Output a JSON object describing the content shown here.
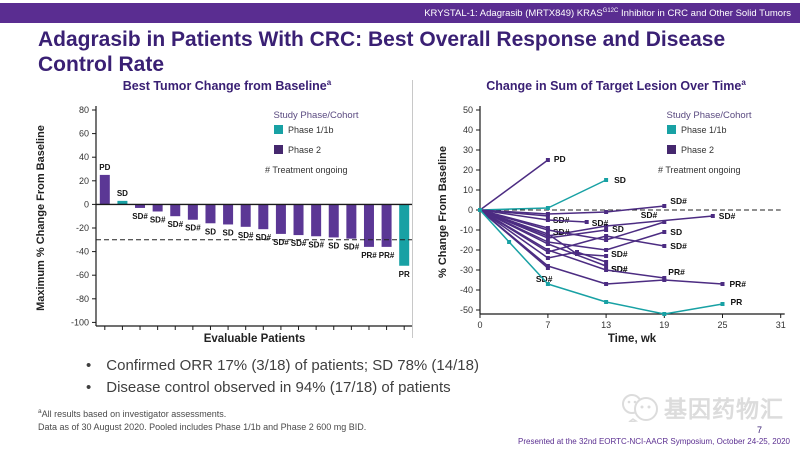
{
  "header": {
    "banner_pre": "KRYSTAL-1: Adagrasib (MRTX849) KRAS",
    "banner_sup": "G12C",
    "banner_post": " Inhibitor in CRC and Other Solid Tumors"
  },
  "title": "Adagrasib in Patients With CRC: Best Overall Response and Disease Control Rate",
  "bullets": [
    "Confirmed ORR 17% (3/18) of patients; SD 78% (14/18)",
    "Disease control observed in 94% (17/18) of patients"
  ],
  "footnotes": {
    "sup": "a",
    "line1": "All results based on investigator assessments.",
    "line2": "Data as of 30 August 2020. Pooled includes Phase 1/1b and Phase 2 600 mg BID."
  },
  "watermark": {
    "text": "基因药物汇"
  },
  "presented": "Presented at the 32nd EORTC-NCI-AACR Symposium, October 24-25, 2020",
  "page_number": "7",
  "colors": {
    "teal": "#18A1A4",
    "purple": "#5B3795",
    "purple_line": "#4C2C82",
    "purple_legend": "#45286E",
    "header": "#5A2D91",
    "title_text": "#3A2074",
    "axis": "#1A1A1A",
    "dashed": "#222222",
    "watermark": "#DCDCDC"
  },
  "chart_data": [
    {
      "type": "bar",
      "title": "Best Tumor Change from Baseline",
      "title_sup": "a",
      "xlabel": "Evaluable Patients",
      "ylabel": "Maximum % Change From Baseline",
      "ylim": [
        -100,
        80
      ],
      "yticks": [
        80,
        60,
        40,
        20,
        0,
        -20,
        -40,
        -60,
        -80,
        -100
      ],
      "reference_line": -30,
      "legend": {
        "title": "Study Phase/Cohort",
        "items": [
          {
            "label": "Phase 1/1b",
            "color_key": "teal"
          },
          {
            "label": "Phase 2",
            "color_key": "purple_legend"
          }
        ],
        "note": "# Treatment ongoing"
      },
      "bars": [
        {
          "label": "PD",
          "value": 25,
          "phase": "2"
        },
        {
          "label": "SD",
          "value": 3,
          "phase": "1"
        },
        {
          "label": "SD#",
          "value": -3,
          "phase": "2"
        },
        {
          "label": "SD#",
          "value": -6,
          "phase": "2"
        },
        {
          "label": "SD#",
          "value": -10,
          "phase": "2"
        },
        {
          "label": "SD#",
          "value": -13,
          "phase": "2"
        },
        {
          "label": "SD",
          "value": -16,
          "phase": "2"
        },
        {
          "label": "SD",
          "value": -17,
          "phase": "2"
        },
        {
          "label": "SD#",
          "value": -19,
          "phase": "2"
        },
        {
          "label": "SD#",
          "value": -21,
          "phase": "2"
        },
        {
          "label": "SD#",
          "value": -25,
          "phase": "2"
        },
        {
          "label": "SD#",
          "value": -26,
          "phase": "2"
        },
        {
          "label": "SD#",
          "value": -27,
          "phase": "2"
        },
        {
          "label": "SD",
          "value": -28,
          "phase": "2"
        },
        {
          "label": "SD#",
          "value": -29,
          "phase": "2"
        },
        {
          "label": "PR#",
          "value": -36,
          "phase": "2"
        },
        {
          "label": "PR#",
          "value": -36,
          "phase": "2"
        },
        {
          "label": "PR",
          "value": -52,
          "phase": "1"
        }
      ]
    },
    {
      "type": "line",
      "title": "Change in Sum of Target Lesion Over Time",
      "title_sup": "a",
      "xlabel": "Time, wk",
      "ylabel": "% Change From Baseline",
      "xlim": [
        0,
        31
      ],
      "xticks": [
        0,
        7,
        13,
        19,
        25,
        31
      ],
      "ylim": [
        -55,
        50
      ],
      "yticks": [
        50,
        40,
        30,
        20,
        10,
        0,
        -10,
        -20,
        -30,
        -40,
        -50
      ],
      "reference_line": 0,
      "legend": {
        "title": "Study Phase/Cohort",
        "items": [
          {
            "label": "Phase 1/1b",
            "color_key": "teal"
          },
          {
            "label": "Phase 2",
            "color_key": "purple_legend"
          }
        ],
        "note": "# Treatment ongoing"
      },
      "series": [
        {
          "label": "PD",
          "phase": "2",
          "points": [
            [
              0,
              0
            ],
            [
              7,
              25
            ]
          ],
          "ldx": 6,
          "ldy": -1
        },
        {
          "label": "SD",
          "phase": "1",
          "points": [
            [
              0,
              0
            ],
            [
              7,
              1
            ],
            [
              13,
              15
            ]
          ],
          "ldx": 8,
          "ldy": 0
        },
        {
          "label": "SD#",
          "phase": "2",
          "points": [
            [
              0,
              0
            ],
            [
              7,
              -2
            ],
            [
              13,
              -1
            ],
            [
              19,
              2
            ]
          ],
          "ldx": 6,
          "ldy": -5
        },
        {
          "label": "SD#",
          "phase": "2",
          "points": [
            [
              0,
              0
            ],
            [
              7,
              -13
            ],
            [
              13,
              -8
            ],
            [
              24,
              -3
            ]
          ],
          "ldx": 6,
          "ldy": 0
        },
        {
          "label": "SD#",
          "phase": "2",
          "points": [
            [
              0,
              0
            ],
            [
              7,
              -3
            ]
          ],
          "ldx": 5,
          "ldy": 4
        },
        {
          "label": "SD#",
          "phase": "2",
          "points": [
            [
              0,
              0
            ],
            [
              7,
              -5
            ],
            [
              11,
              -6
            ]
          ],
          "ldx": 5,
          "ldy": 1
        },
        {
          "label": "SD#",
          "phase": "2",
          "points": [
            [
              0,
              0
            ],
            [
              7,
              -9
            ]
          ],
          "ldx": 5,
          "ldy": 4
        },
        {
          "label": "SD#",
          "phase": "2",
          "points": [
            [
              0,
              0
            ],
            [
              7,
              -10
            ],
            [
              13,
              -15
            ],
            [
              19,
              -6
            ]
          ],
          "ldx": -7,
          "ldy": -7,
          "anchor": "end"
        },
        {
          "label": "SD",
          "phase": "2",
          "points": [
            [
              0,
              0
            ],
            [
              7,
              -14
            ],
            [
              13,
              -10
            ]
          ],
          "ldx": 6,
          "ldy": -1
        },
        {
          "label": "SD",
          "phase": "2",
          "points": [
            [
              0,
              0
            ],
            [
              7,
              -16
            ],
            [
              13,
              -20
            ],
            [
              19,
              -11
            ]
          ],
          "ldx": 6,
          "ldy": 0
        },
        {
          "label": "SD#",
          "phase": "2",
          "points": [
            [
              0,
              0
            ],
            [
              7,
              -21
            ],
            [
              13,
              -13
            ],
            [
              19,
              -18
            ]
          ],
          "ldx": 6,
          "ldy": 0
        },
        {
          "label": "SD#",
          "phase": "2",
          "points": [
            [
              0,
              0
            ],
            [
              7,
              -12
            ],
            [
              10,
              -22
            ],
            [
              13,
              -23
            ]
          ],
          "ldx": 5,
          "ldy": -2
        },
        {
          "label": "SD#",
          "phase": "2",
          "points": [
            [
              0,
              0
            ],
            [
              7,
              -24
            ],
            [
              10,
              -21
            ],
            [
              13,
              -26
            ]
          ],
          "ldx": 5,
          "ldy": 7
        },
        {
          "label": "SD#",
          "phase": "2",
          "points": [
            [
              0,
              0
            ],
            [
              7,
              -17
            ],
            [
              13,
              -28
            ]
          ],
          "ldx": 5,
          "ldy": 3
        },
        {
          "label": "SD#",
          "phase": "2",
          "points": [
            [
              0,
              0
            ],
            [
              7,
              -29
            ]
          ],
          "ldx": -12,
          "ldy": 11
        },
        {
          "label": "PR#",
          "phase": "2",
          "points": [
            [
              0,
              0
            ],
            [
              7,
              -20
            ],
            [
              13,
              -30
            ],
            [
              19,
              -34
            ]
          ],
          "ldx": 4,
          "ldy": -6
        },
        {
          "label": "PR#",
          "phase": "2",
          "points": [
            [
              0,
              0
            ],
            [
              7,
              -28
            ],
            [
              13,
              -37
            ],
            [
              19,
              -35
            ],
            [
              25,
              -37
            ]
          ],
          "ldx": 7,
          "ldy": 0
        },
        {
          "label": "PR",
          "phase": "1",
          "points": [
            [
              0,
              0
            ],
            [
              3,
              -16
            ],
            [
              7,
              -37
            ],
            [
              13,
              -46
            ],
            [
              19,
              -52
            ],
            [
              25,
              -47
            ]
          ],
          "ldx": 8,
          "ldy": -2
        }
      ]
    }
  ]
}
